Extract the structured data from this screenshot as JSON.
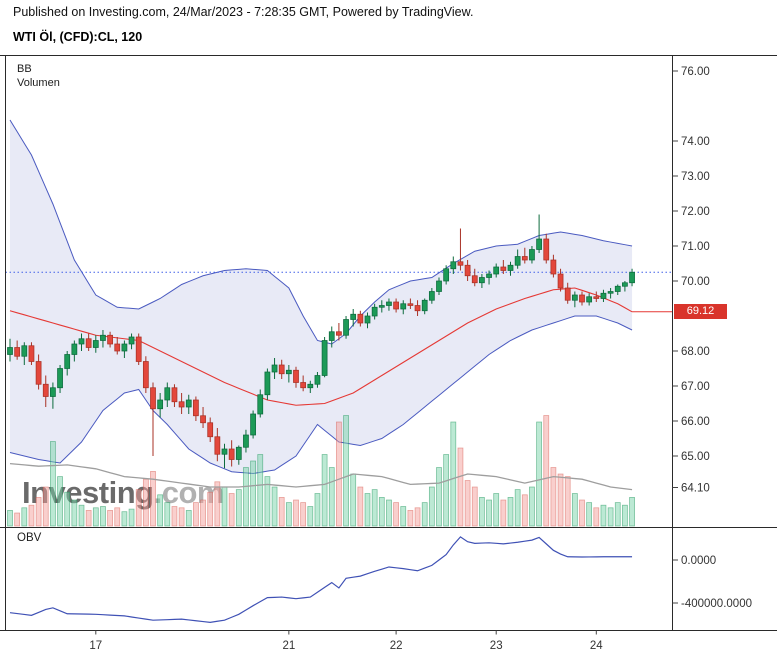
{
  "header": {
    "published_line": "Published on Investing.com, 24/Mar/2023 - 7:28:35 GMT, Powered by TradingView.",
    "symbol_line": "WTI Öl, (CFD):CL, 120"
  },
  "legend": {
    "bb": "BB",
    "volume": "Volumen"
  },
  "watermark": {
    "name": "Investing",
    "tld": ".com"
  },
  "price_badge": {
    "label": "69.12",
    "color": "#d9342b"
  },
  "obv_panel": {
    "label": "OBV",
    "axis": [
      {
        "label": "0.0000",
        "value": 0
      },
      {
        "label": "-400000.0000",
        "value": -400000
      }
    ]
  },
  "y_axis": {
    "labels": [
      {
        "label": "76.00",
        "price": 76.0
      },
      {
        "label": "74.00",
        "price": 74.0
      },
      {
        "label": "73.00",
        "price": 73.0
      },
      {
        "label": "72.00",
        "price": 72.0
      },
      {
        "label": "71.00",
        "price": 71.0
      },
      {
        "label": "70.00",
        "price": 70.0
      },
      {
        "label": "68.00",
        "price": 68.0
      },
      {
        "label": "67.00",
        "price": 67.0
      },
      {
        "label": "66.00",
        "price": 66.0
      },
      {
        "label": "65.00",
        "price": 65.0
      },
      {
        "label": "64.10",
        "price": 64.1
      }
    ]
  },
  "x_axis": {
    "labels": [
      {
        "label": "17",
        "index": 12
      },
      {
        "label": "21",
        "index": 39
      },
      {
        "label": "22",
        "index": 54
      },
      {
        "label": "23",
        "index": 68
      },
      {
        "label": "24",
        "index": 82
      }
    ]
  },
  "chart_data": {
    "type": "candlestick",
    "title": "WTI Öl, (CFD):CL, 120",
    "symbol": "WTI Öl (CFD):CL",
    "interval_minutes": 120,
    "indicators": [
      "BB",
      "Volumen",
      "OBV"
    ],
    "last_price_line": 70.25,
    "bb_last_value": 69.12,
    "y_axis_range": [
      64.0,
      76.5
    ],
    "obv_axis_range": [
      -650000,
      300000
    ],
    "candles": [
      [
        67.9,
        68.35,
        67.7,
        68.1,
        12
      ],
      [
        68.1,
        68.3,
        67.75,
        67.85,
        10
      ],
      [
        67.85,
        68.25,
        67.6,
        68.15,
        14
      ],
      [
        68.15,
        68.25,
        67.6,
        67.7,
        16
      ],
      [
        67.7,
        67.9,
        66.9,
        67.05,
        22
      ],
      [
        67.05,
        67.3,
        66.4,
        66.7,
        30
      ],
      [
        66.7,
        67.1,
        66.35,
        66.95,
        65
      ],
      [
        66.95,
        67.6,
        66.8,
        67.5,
        38
      ],
      [
        67.5,
        68.0,
        67.3,
        67.9,
        26
      ],
      [
        67.9,
        68.3,
        67.7,
        68.2,
        20
      ],
      [
        68.2,
        68.5,
        68.0,
        68.35,
        16
      ],
      [
        68.35,
        68.5,
        68.0,
        68.1,
        12
      ],
      [
        68.1,
        68.45,
        67.95,
        68.3,
        14
      ],
      [
        68.3,
        68.6,
        68.1,
        68.45,
        15
      ],
      [
        68.45,
        68.55,
        68.1,
        68.2,
        12
      ],
      [
        68.2,
        68.4,
        67.9,
        68.0,
        14
      ],
      [
        68.0,
        68.3,
        67.8,
        68.2,
        11
      ],
      [
        68.2,
        68.5,
        68.05,
        68.4,
        13
      ],
      [
        68.4,
        68.5,
        67.6,
        67.7,
        28
      ],
      [
        67.7,
        67.85,
        66.8,
        66.95,
        36
      ],
      [
        66.95,
        67.1,
        65.0,
        66.35,
        42
      ],
      [
        66.35,
        66.8,
        66.1,
        66.6,
        24
      ],
      [
        66.6,
        67.1,
        66.4,
        66.95,
        18
      ],
      [
        66.95,
        67.05,
        66.4,
        66.55,
        15
      ],
      [
        66.55,
        66.8,
        66.2,
        66.4,
        14
      ],
      [
        66.4,
        66.75,
        66.2,
        66.6,
        12
      ],
      [
        66.6,
        66.7,
        66.0,
        66.15,
        18
      ],
      [
        66.15,
        66.4,
        65.8,
        65.95,
        20
      ],
      [
        65.95,
        66.1,
        65.4,
        65.55,
        26
      ],
      [
        65.55,
        65.8,
        64.85,
        65.05,
        34
      ],
      [
        65.05,
        65.35,
        64.65,
        65.2,
        30
      ],
      [
        65.2,
        65.45,
        64.7,
        64.9,
        25
      ],
      [
        64.9,
        65.3,
        64.75,
        65.25,
        28
      ],
      [
        65.25,
        65.75,
        65.1,
        65.6,
        45
      ],
      [
        65.6,
        66.3,
        65.5,
        66.2,
        50
      ],
      [
        66.2,
        66.9,
        66.1,
        66.75,
        55
      ],
      [
        66.75,
        67.5,
        66.6,
        67.4,
        38
      ],
      [
        67.4,
        67.8,
        67.2,
        67.6,
        30
      ],
      [
        67.6,
        67.75,
        67.2,
        67.35,
        22
      ],
      [
        67.35,
        67.6,
        67.1,
        67.45,
        18
      ],
      [
        67.45,
        67.55,
        66.95,
        67.1,
        20
      ],
      [
        67.1,
        67.3,
        66.85,
        66.95,
        18
      ],
      [
        66.95,
        67.15,
        66.8,
        67.05,
        15
      ],
      [
        67.05,
        67.4,
        66.95,
        67.3,
        25
      ],
      [
        67.3,
        68.4,
        67.25,
        68.3,
        55
      ],
      [
        68.3,
        68.7,
        68.1,
        68.55,
        45
      ],
      [
        68.55,
        68.8,
        68.3,
        68.45,
        80
      ],
      [
        68.45,
        69.0,
        68.35,
        68.9,
        85
      ],
      [
        68.9,
        69.2,
        68.7,
        69.05,
        40
      ],
      [
        69.05,
        69.15,
        68.7,
        68.8,
        30
      ],
      [
        68.8,
        69.1,
        68.65,
        69.0,
        25
      ],
      [
        69.0,
        69.35,
        68.9,
        69.25,
        28
      ],
      [
        69.25,
        69.45,
        69.1,
        69.3,
        22
      ],
      [
        69.3,
        69.5,
        69.15,
        69.4,
        20
      ],
      [
        69.4,
        69.5,
        69.1,
        69.2,
        18
      ],
      [
        69.2,
        69.45,
        69.05,
        69.35,
        15
      ],
      [
        69.35,
        69.5,
        69.2,
        69.3,
        12
      ],
      [
        69.3,
        69.45,
        69.0,
        69.15,
        14
      ],
      [
        69.15,
        69.5,
        69.05,
        69.45,
        18
      ],
      [
        69.45,
        69.8,
        69.35,
        69.7,
        30
      ],
      [
        69.7,
        70.1,
        69.6,
        70.0,
        45
      ],
      [
        70.0,
        70.45,
        69.9,
        70.35,
        55
      ],
      [
        70.35,
        70.7,
        70.2,
        70.55,
        80
      ],
      [
        70.55,
        71.5,
        70.3,
        70.45,
        60
      ],
      [
        70.45,
        70.6,
        70.0,
        70.15,
        35
      ],
      [
        70.15,
        70.35,
        69.85,
        69.95,
        30
      ],
      [
        69.95,
        70.2,
        69.8,
        70.1,
        22
      ],
      [
        70.1,
        70.3,
        69.9,
        70.2,
        20
      ],
      [
        70.2,
        70.5,
        70.1,
        70.4,
        25
      ],
      [
        70.4,
        70.6,
        70.2,
        70.3,
        20
      ],
      [
        70.3,
        70.55,
        70.15,
        70.45,
        22
      ],
      [
        70.45,
        70.9,
        70.35,
        70.7,
        28
      ],
      [
        70.7,
        70.95,
        70.5,
        70.6,
        24
      ],
      [
        70.6,
        71.0,
        70.5,
        70.9,
        30
      ],
      [
        70.9,
        71.9,
        70.8,
        71.2,
        80
      ],
      [
        71.2,
        71.35,
        70.5,
        70.6,
        85
      ],
      [
        70.6,
        70.75,
        70.1,
        70.2,
        45
      ],
      [
        70.2,
        70.35,
        69.7,
        69.8,
        40
      ],
      [
        69.8,
        69.95,
        69.35,
        69.45,
        38
      ],
      [
        69.45,
        69.7,
        69.25,
        69.6,
        25
      ],
      [
        69.6,
        69.7,
        69.3,
        69.4,
        20
      ],
      [
        69.4,
        69.65,
        69.3,
        69.55,
        18
      ],
      [
        69.55,
        69.7,
        69.4,
        69.5,
        14
      ],
      [
        69.5,
        69.75,
        69.4,
        69.65,
        16
      ],
      [
        69.65,
        69.8,
        69.5,
        69.7,
        14
      ],
      [
        69.7,
        69.9,
        69.6,
        69.85,
        18
      ],
      [
        69.85,
        70.0,
        69.7,
        69.95,
        16
      ],
      [
        69.95,
        70.35,
        69.85,
        70.25,
        22
      ]
    ],
    "bb_upper_points": [
      [
        0,
        74.6
      ],
      [
        3,
        73.6
      ],
      [
        6,
        72.2
      ],
      [
        9,
        70.6
      ],
      [
        12,
        69.6
      ],
      [
        15,
        69.25
      ],
      [
        18,
        69.2
      ],
      [
        21,
        69.5
      ],
      [
        24,
        69.9
      ],
      [
        27,
        70.15
      ],
      [
        30,
        70.3
      ],
      [
        33,
        70.35
      ],
      [
        36,
        70.3
      ],
      [
        39,
        69.8
      ],
      [
        41,
        69.0
      ],
      [
        43,
        68.3
      ],
      [
        45,
        68.2
      ],
      [
        47,
        68.5
      ],
      [
        49,
        69.0
      ],
      [
        51,
        69.4
      ],
      [
        53,
        69.75
      ],
      [
        56,
        70.0
      ],
      [
        59,
        70.1
      ],
      [
        62,
        70.5
      ],
      [
        65,
        70.85
      ],
      [
        68,
        71.0
      ],
      [
        71,
        71.05
      ],
      [
        74,
        71.3
      ],
      [
        77,
        71.4
      ],
      [
        80,
        71.3
      ],
      [
        83,
        71.15
      ],
      [
        87,
        71.0
      ]
    ],
    "bb_middle_points": [
      [
        0,
        69.15
      ],
      [
        6,
        68.8
      ],
      [
        12,
        68.45
      ],
      [
        18,
        68.3
      ],
      [
        24,
        67.7
      ],
      [
        30,
        67.1
      ],
      [
        36,
        66.6
      ],
      [
        40,
        66.45
      ],
      [
        44,
        66.5
      ],
      [
        48,
        66.8
      ],
      [
        52,
        67.3
      ],
      [
        56,
        67.8
      ],
      [
        60,
        68.3
      ],
      [
        64,
        68.8
      ],
      [
        68,
        69.2
      ],
      [
        72,
        69.5
      ],
      [
        76,
        69.75
      ],
      [
        79,
        69.8
      ],
      [
        82,
        69.6
      ],
      [
        85,
        69.35
      ],
      [
        87,
        69.12
      ]
    ],
    "bb_lower_points": [
      [
        0,
        65.1
      ],
      [
        4,
        64.9
      ],
      [
        7,
        64.8
      ],
      [
        10,
        65.4
      ],
      [
        13,
        66.3
      ],
      [
        16,
        66.8
      ],
      [
        18,
        66.9
      ],
      [
        20,
        66.3
      ],
      [
        22,
        65.9
      ],
      [
        25,
        65.2
      ],
      [
        28,
        64.8
      ],
      [
        31,
        64.55
      ],
      [
        34,
        64.5
      ],
      [
        37,
        64.6
      ],
      [
        40,
        65.0
      ],
      [
        43,
        65.9
      ],
      [
        46,
        65.4
      ],
      [
        49,
        65.3
      ],
      [
        52,
        65.5
      ],
      [
        55,
        65.9
      ],
      [
        58,
        66.4
      ],
      [
        61,
        66.9
      ],
      [
        64,
        67.4
      ],
      [
        67,
        67.9
      ],
      [
        70,
        68.3
      ],
      [
        73,
        68.6
      ],
      [
        76,
        68.8
      ],
      [
        79,
        69.0
      ],
      [
        82,
        69.0
      ],
      [
        85,
        68.8
      ],
      [
        87,
        68.6
      ]
    ],
    "volume_ma_points": [
      [
        0,
        48
      ],
      [
        4,
        46
      ],
      [
        8,
        47
      ],
      [
        12,
        44
      ],
      [
        16,
        38
      ],
      [
        20,
        36
      ],
      [
        24,
        33
      ],
      [
        28,
        30
      ],
      [
        32,
        30
      ],
      [
        36,
        32
      ],
      [
        40,
        30
      ],
      [
        44,
        32
      ],
      [
        48,
        40
      ],
      [
        52,
        38
      ],
      [
        56,
        32
      ],
      [
        60,
        33
      ],
      [
        64,
        40
      ],
      [
        68,
        38
      ],
      [
        72,
        33
      ],
      [
        76,
        38
      ],
      [
        80,
        36
      ],
      [
        84,
        30
      ],
      [
        87,
        28
      ]
    ],
    "obv_points": [
      [
        0,
        -490000
      ],
      [
        3,
        -515000
      ],
      [
        5,
        -460000
      ],
      [
        6,
        -445000
      ],
      [
        8,
        -500000
      ],
      [
        12,
        -505000
      ],
      [
        16,
        -520000
      ],
      [
        20,
        -560000
      ],
      [
        24,
        -550000
      ],
      [
        28,
        -580000
      ],
      [
        30,
        -560000
      ],
      [
        32,
        -505000
      ],
      [
        34,
        -425000
      ],
      [
        36,
        -350000
      ],
      [
        38,
        -345000
      ],
      [
        40,
        -360000
      ],
      [
        42,
        -345000
      ],
      [
        44,
        -255000
      ],
      [
        45,
        -210000
      ],
      [
        46,
        -260000
      ],
      [
        47,
        -170000
      ],
      [
        49,
        -150000
      ],
      [
        51,
        -105000
      ],
      [
        53,
        -65000
      ],
      [
        55,
        -80000
      ],
      [
        57,
        -100000
      ],
      [
        59,
        -50000
      ],
      [
        61,
        50000
      ],
      [
        62,
        140000
      ],
      [
        63,
        215000
      ],
      [
        64,
        170000
      ],
      [
        65,
        155000
      ],
      [
        67,
        160000
      ],
      [
        69,
        150000
      ],
      [
        71,
        165000
      ],
      [
        73,
        185000
      ],
      [
        74,
        210000
      ],
      [
        75,
        150000
      ],
      [
        76,
        90000
      ],
      [
        77,
        55000
      ],
      [
        78,
        30000
      ],
      [
        80,
        28000
      ],
      [
        83,
        30000
      ],
      [
        87,
        30000
      ]
    ],
    "colors": {
      "up_body": "#1c9a57",
      "up_border": "#0c6b3d",
      "down_body": "#e3473c",
      "down_border": "#a93226",
      "bb_line": "#4a5ac0",
      "bb_fill": "rgba(92,107,192,0.14)",
      "bb_mid": "#e53935",
      "last_price_line": "#4060e8",
      "up_vol_fill": "rgba(121,212,170,0.5)",
      "up_vol_border": "rgba(27,148,90,0.55)",
      "down_vol_fill": "rgba(244,160,155,0.5)",
      "down_vol_border": "rgba(211,80,70,0.5)",
      "volume_ma": "#9e9e9e",
      "obv": "#3f51b5",
      "axis_text": "#333333",
      "border": "#2a2a2a"
    }
  }
}
